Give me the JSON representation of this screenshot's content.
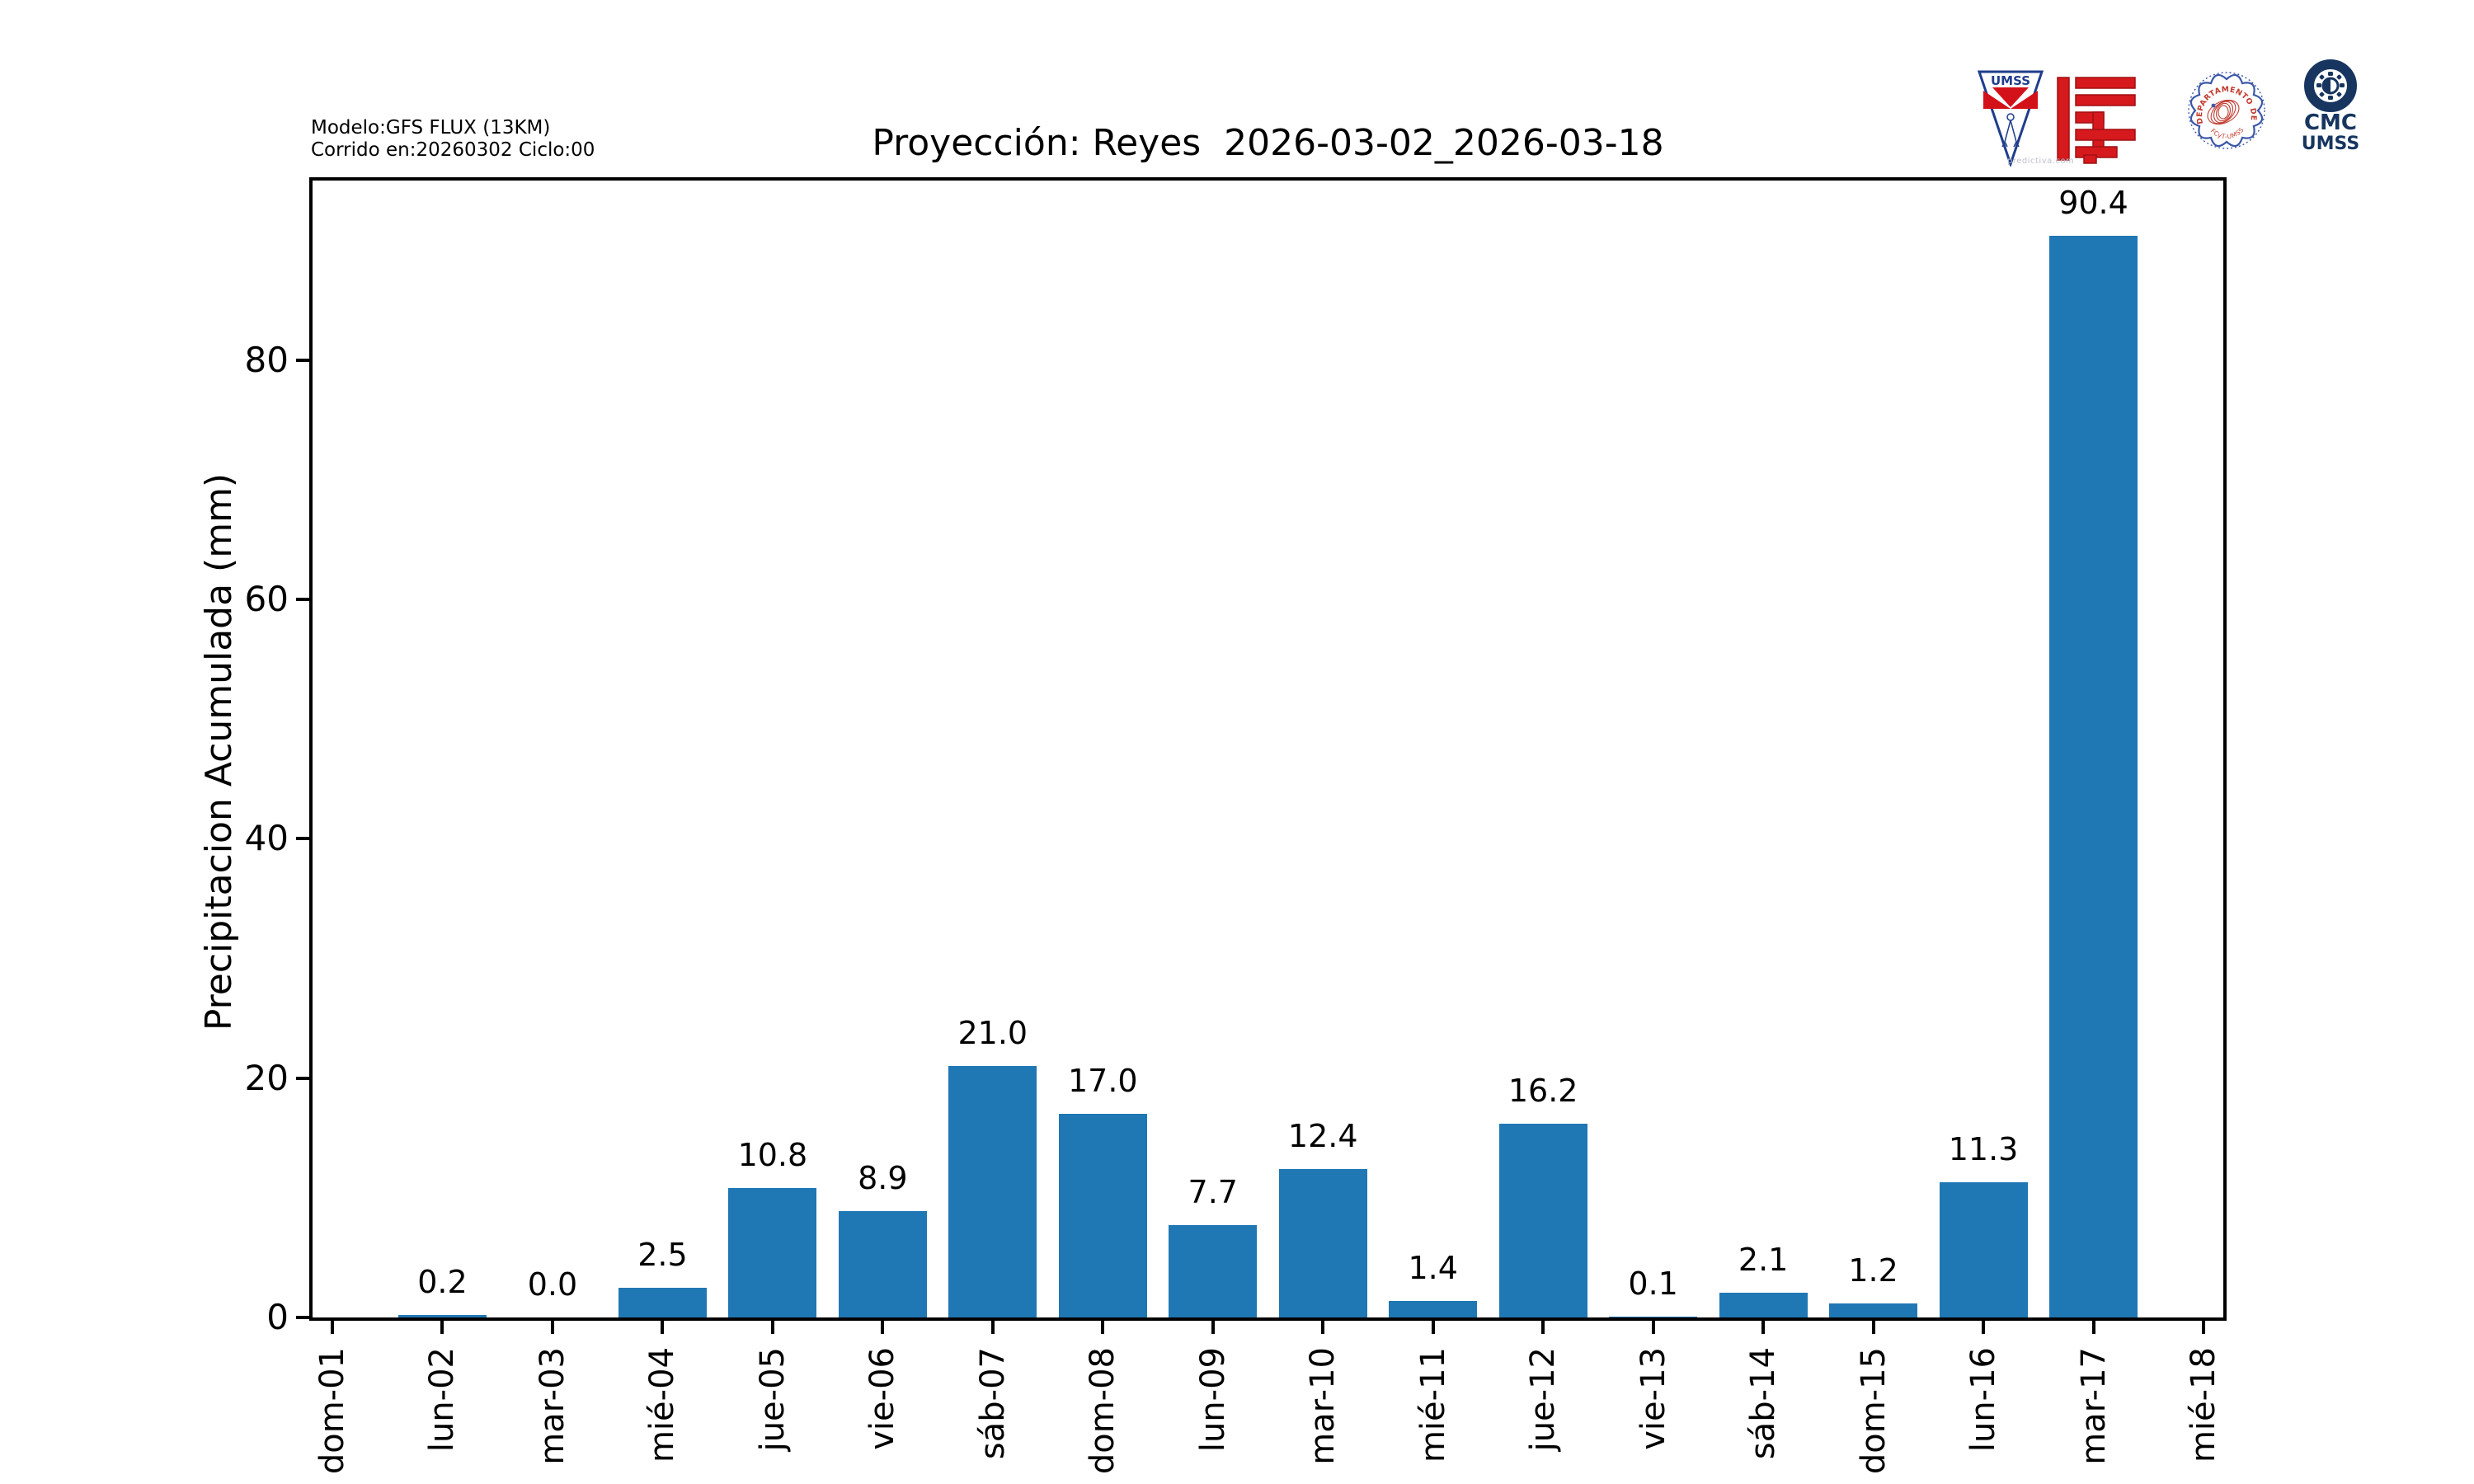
{
  "header": {
    "model_info_line1": "Modelo:GFS FLUX (13KM)",
    "model_info_line2": "Corrido en:20260302 Ciclo:00",
    "title": "Proyección: Reyes  2026-03-02_2026-03-18"
  },
  "logos": {
    "pennant": {
      "label": "UMSS",
      "watermark": "predictiva.com"
    },
    "seal": {
      "arc_text": "DEPARTAMENTO DE FÍSICA",
      "bottom_text": "FCyT-UMSS"
    },
    "cmc": {
      "line1": "CMC",
      "line2": "UMSS"
    }
  },
  "colors": {
    "bar_blue": "#1f77b4",
    "logo_navy": "#17355f",
    "logo_red": "#d6191d",
    "seal_blue": "#3b57a8",
    "seal_red": "#c03a2e",
    "axis_black": "#000000"
  },
  "chart_data": {
    "type": "bar",
    "title": "Proyección: Reyes  2026-03-02_2026-03-18",
    "xlabel": "",
    "ylabel": "Precipitacion Acumulada (mm)",
    "categories": [
      "dom-01",
      "lun-02",
      "mar-03",
      "mié-04",
      "jue-05",
      "vie-06",
      "sáb-07",
      "dom-08",
      "lun-09",
      "mar-10",
      "mié-11",
      "jue-12",
      "vie-13",
      "sáb-14",
      "dom-15",
      "lun-16",
      "mar-17",
      "mié-18"
    ],
    "values": [
      null,
      0.2,
      0.0,
      2.5,
      10.8,
      8.9,
      21.0,
      17.0,
      7.7,
      12.4,
      1.4,
      16.2,
      0.1,
      2.1,
      1.2,
      11.3,
      90.4,
      null
    ],
    "bar_labels": [
      "",
      "0.2",
      "0.0",
      "2.5",
      "10.8",
      "8.9",
      "21.0",
      "17.0",
      "7.7",
      "12.4",
      "1.4",
      "16.2",
      "0.1",
      "2.1",
      "1.2",
      "11.3",
      "90.4",
      ""
    ],
    "yticks": [
      0,
      20,
      40,
      60,
      80
    ],
    "ylim": [
      0,
      95
    ],
    "bar_color": "#1f77b4",
    "grid": false,
    "legend": null
  }
}
